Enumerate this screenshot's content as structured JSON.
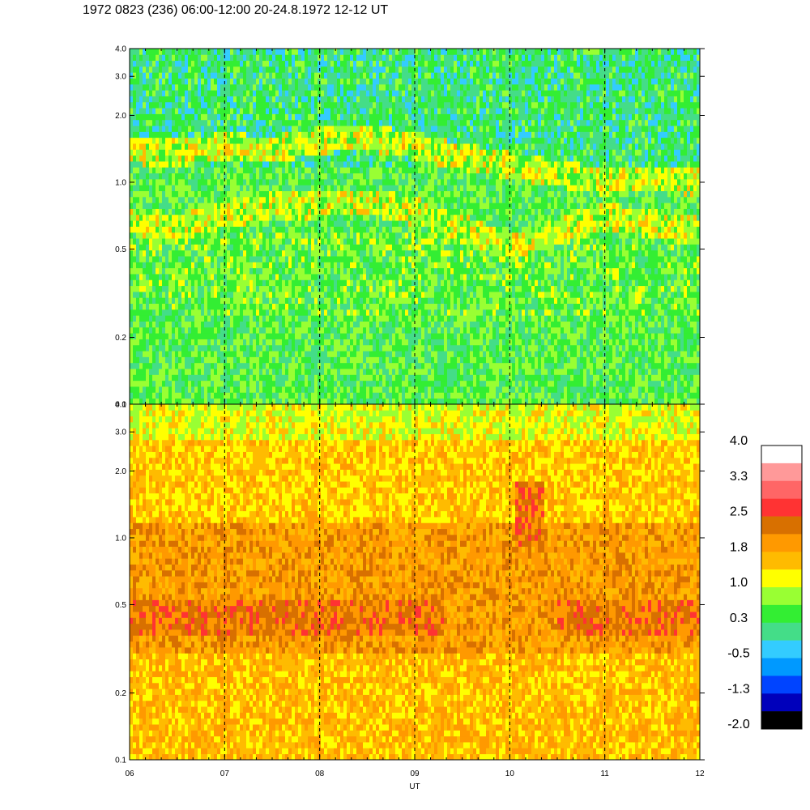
{
  "title": "1972 0823 (236) 06:00-12:00 20-24.8.1972  12-12 UT",
  "chart_data": [
    {
      "type": "heatmap",
      "panel": "top",
      "xlabel": "",
      "ylabel": "",
      "x_ticks": [
        "06",
        "07",
        "08",
        "09",
        "10",
        "11",
        "12"
      ],
      "xlim": [
        6,
        12
      ],
      "ylim": [
        0.1,
        4.0
      ],
      "y_scale": "log",
      "y_ticks": [
        {
          "value": 0.1,
          "label": "0.1"
        },
        {
          "value": 0.2,
          "label": "0.2"
        },
        {
          "value": 0.5,
          "label": "0.5"
        },
        {
          "value": 1.0,
          "label": "1.0"
        },
        {
          "value": 2.0,
          "label": "2.0"
        },
        {
          "value": 3.0,
          "label": "3.0"
        },
        {
          "value": 4.0,
          "label": "4.0"
        }
      ],
      "dashed_gridlines_x": [
        7,
        8,
        9,
        10,
        11
      ],
      "bands": [
        {
          "x": [
            6.0,
            6.5,
            7.0,
            7.5,
            8.0,
            8.5,
            9.0,
            9.5,
            10.0,
            10.5,
            11.0,
            11.5,
            12.0
          ],
          "y": [
            0.68,
            0.62,
            0.72,
            0.78,
            0.8,
            0.82,
            0.74,
            0.62,
            0.5,
            0.6,
            0.7,
            0.65,
            0.6
          ],
          "level": 1.0
        },
        {
          "x": [
            6.0,
            6.5,
            7.0,
            7.5,
            8.0,
            8.5,
            9.0,
            9.5,
            10.0,
            10.5,
            11.0,
            11.5,
            12.0
          ],
          "y": [
            1.4,
            1.35,
            1.45,
            1.4,
            1.55,
            1.6,
            1.45,
            1.3,
            1.2,
            1.1,
            1.0,
            1.05,
            1.0
          ],
          "level": 1.0
        }
      ]
    },
    {
      "type": "heatmap",
      "panel": "bottom",
      "xlabel": "UT",
      "ylabel": "",
      "x_ticks": [
        "06",
        "07",
        "08",
        "09",
        "10",
        "11",
        "12"
      ],
      "xlim": [
        6,
        12
      ],
      "ylim": [
        0.1,
        4.0
      ],
      "y_scale": "log",
      "y_ticks": [
        {
          "value": 0.1,
          "label": "0.1"
        },
        {
          "value": 0.2,
          "label": "0.2"
        },
        {
          "value": 0.5,
          "label": "0.5"
        },
        {
          "value": 1.0,
          "label": "1.0"
        },
        {
          "value": 2.0,
          "label": "2.0"
        },
        {
          "value": 3.0,
          "label": "3.0"
        },
        {
          "value": 4.0,
          "label": "4.0"
        }
      ],
      "dashed_gridlines_x": [
        7,
        8,
        9,
        10,
        11
      ]
    }
  ],
  "colorbar": {
    "labels": [
      "4.0",
      "3.3",
      "2.5",
      "1.8",
      "1.0",
      "0.3",
      "-0.5",
      "-1.3",
      "-2.0"
    ],
    "range": [
      -2.0,
      4.0
    ],
    "colors_top_to_bottom": [
      "#ffffff",
      "#ff9999",
      "#ff6666",
      "#ff3333",
      "#d87000",
      "#ff9900",
      "#ffbb00",
      "#ffff00",
      "#99ff33",
      "#33ee33",
      "#44dd88",
      "#33ccff",
      "#0099ff",
      "#0044ff",
      "#0000bb",
      "#000000"
    ]
  }
}
